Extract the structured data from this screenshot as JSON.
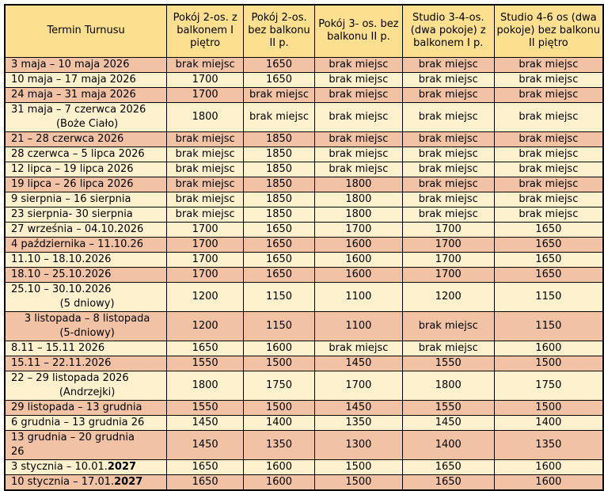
{
  "colors": {
    "header_bg": "#fce08f",
    "row_cream": "#fdf0cd",
    "row_salmon": "#f1c3a4",
    "border": "#000000",
    "text": "#000000",
    "page_bg": "#ffffff"
  },
  "table": {
    "header": [
      "Termin Turnusu",
      "Pokój 2-os. z balkonem I piętro",
      "Pokój 2-os. bez balkonu II p.",
      "Pokój 3- os. bez balkonu II p.",
      "Studio 3-4-os. (dwa pokoje) z balkonem I p.",
      "Studio 4-6 os (dwa pokoje) bez balkonu II piętro"
    ],
    "no_vacancy_label": "brak miejsc",
    "rows": [
      {
        "term": "3 maja – 10 maja 2026",
        "shade": "salmon",
        "values": [
          "brak miejsc",
          "1650",
          "brak miejsc",
          "brak miejsc",
          "brak miejsc"
        ]
      },
      {
        "term": "10 maja – 17 maja 2026",
        "shade": "cream",
        "values": [
          "1700",
          "1650",
          "brak miejsc",
          "brak miejsc",
          "brak miejsc"
        ]
      },
      {
        "term": "24 maja – 31 maja 2026",
        "shade": "salmon",
        "values": [
          "1700",
          "brak miejsc",
          "brak miejsc",
          "brak miejsc",
          "brak miejsc"
        ]
      },
      {
        "term": "31 maja – 7 czerwca 2026",
        "term2": "(Boże Ciało)",
        "term2_align": "center",
        "shade": "cream",
        "values": [
          "1800",
          "brak miejsc",
          "brak miejsc",
          "brak miejsc",
          "brak miejsc"
        ]
      },
      {
        "term": "21 – 28 czerwca 2026",
        "shade": "salmon",
        "values": [
          "brak miejsc",
          "1850",
          "brak miejsc",
          "brak miejsc",
          "brak miejsc"
        ]
      },
      {
        "term": "28 czerwca – 5 lipca 2026",
        "shade": "cream",
        "values": [
          "brak miejsc",
          "1850",
          "brak miejsc",
          "brak miejsc",
          "brak miejsc"
        ]
      },
      {
        "term": "12 lipca – 19 lipca 2026",
        "shade": "cream",
        "values": [
          "brak miejsc",
          "1850",
          "brak miejsc",
          "brak miejsc",
          "brak miejsc"
        ]
      },
      {
        "term": "19 lipca – 26 lipca 2026",
        "shade": "salmon",
        "values": [
          "brak miejsc",
          "1850",
          "1800",
          "brak miejsc",
          "brak miejsc"
        ]
      },
      {
        "term": "9 sierpnia – 16 sierpnia",
        "shade": "cream",
        "values": [
          "brak miejsc",
          "1850",
          "1800",
          "brak miejsc",
          "brak miejsc"
        ]
      },
      {
        "term": "23 sierpnia- 30 sierpnia",
        "shade": "cream",
        "values": [
          "brak miejsc",
          "1850",
          "1800",
          "brak miejsc",
          "brak miejsc"
        ]
      },
      {
        "term": "27 września – 04.10.2026",
        "shade": "cream",
        "values": [
          "1700",
          "1650",
          "1700",
          "1700",
          "1650"
        ]
      },
      {
        "term": "4 października – 11.10.26",
        "shade": "salmon",
        "values": [
          "1700",
          "1650",
          "1600",
          "1700",
          "1650"
        ]
      },
      {
        "term": "11.10 – 18.10.2026",
        "shade": "cream",
        "values": [
          "1700",
          "1650",
          "1600",
          "1700",
          "1650"
        ]
      },
      {
        "term": "18.10 – 25.10.2026",
        "shade": "salmon",
        "values": [
          "1700",
          "1650",
          "1600",
          "1700",
          "1650"
        ]
      },
      {
        "term": "25.10 – 30.10.2026",
        "term2": "(5 dniowy)",
        "term2_align": "center",
        "shade": "cream",
        "values": [
          "1200",
          "1150",
          "1100",
          "1200",
          "1150"
        ]
      },
      {
        "term": "3 listopada – 8 listopada",
        "term_align": "center",
        "term2": "(5-dniowy)",
        "term2_align": "center",
        "shade": "salmon",
        "values": [
          "1200",
          "1150",
          "1100",
          "brak miejsc",
          "1150"
        ]
      },
      {
        "term": "8.11 – 15.11 2026",
        "shade": "cream",
        "values": [
          "1650",
          "1600",
          "brak miejsc",
          "brak miejsc",
          "1600"
        ]
      },
      {
        "term": "15.11 – 22.11.2026",
        "shade": "salmon",
        "values": [
          "1550",
          "1500",
          "1450",
          "1550",
          "1500"
        ]
      },
      {
        "term": "22 – 29 listopada 2026",
        "term2": "(Andrzejki)",
        "term2_align": "center",
        "shade": "cream",
        "values": [
          "1800",
          "1750",
          "1700",
          "1800",
          "1750"
        ]
      },
      {
        "term": "29 listopada – 13 grudnia",
        "shade": "salmon",
        "values": [
          "1550",
          "1500",
          "1450",
          "1550",
          "1500"
        ]
      },
      {
        "term": "6 grudnia – 13 grudnia 26",
        "shade": "cream",
        "values": [
          "1450",
          "1400",
          "1350",
          "1450",
          "1400"
        ]
      },
      {
        "term": "13 grudnia – 20 grudnia",
        "term2": "26",
        "term2_align": "left",
        "shade": "salmon",
        "values": [
          "1450",
          "1350",
          "1300",
          "1400",
          "1350"
        ]
      },
      {
        "term": "3 stycznia – 10.01.",
        "term_bold": "2027",
        "shade": "cream",
        "values": [
          "1650",
          "1600",
          "1500",
          "1650",
          "1600"
        ]
      },
      {
        "term": "10 stycznia – 17.01.",
        "term_bold": "2027",
        "shade": "salmon",
        "values": [
          "1650",
          "1600",
          "1500",
          "1650",
          "1600"
        ]
      }
    ]
  }
}
